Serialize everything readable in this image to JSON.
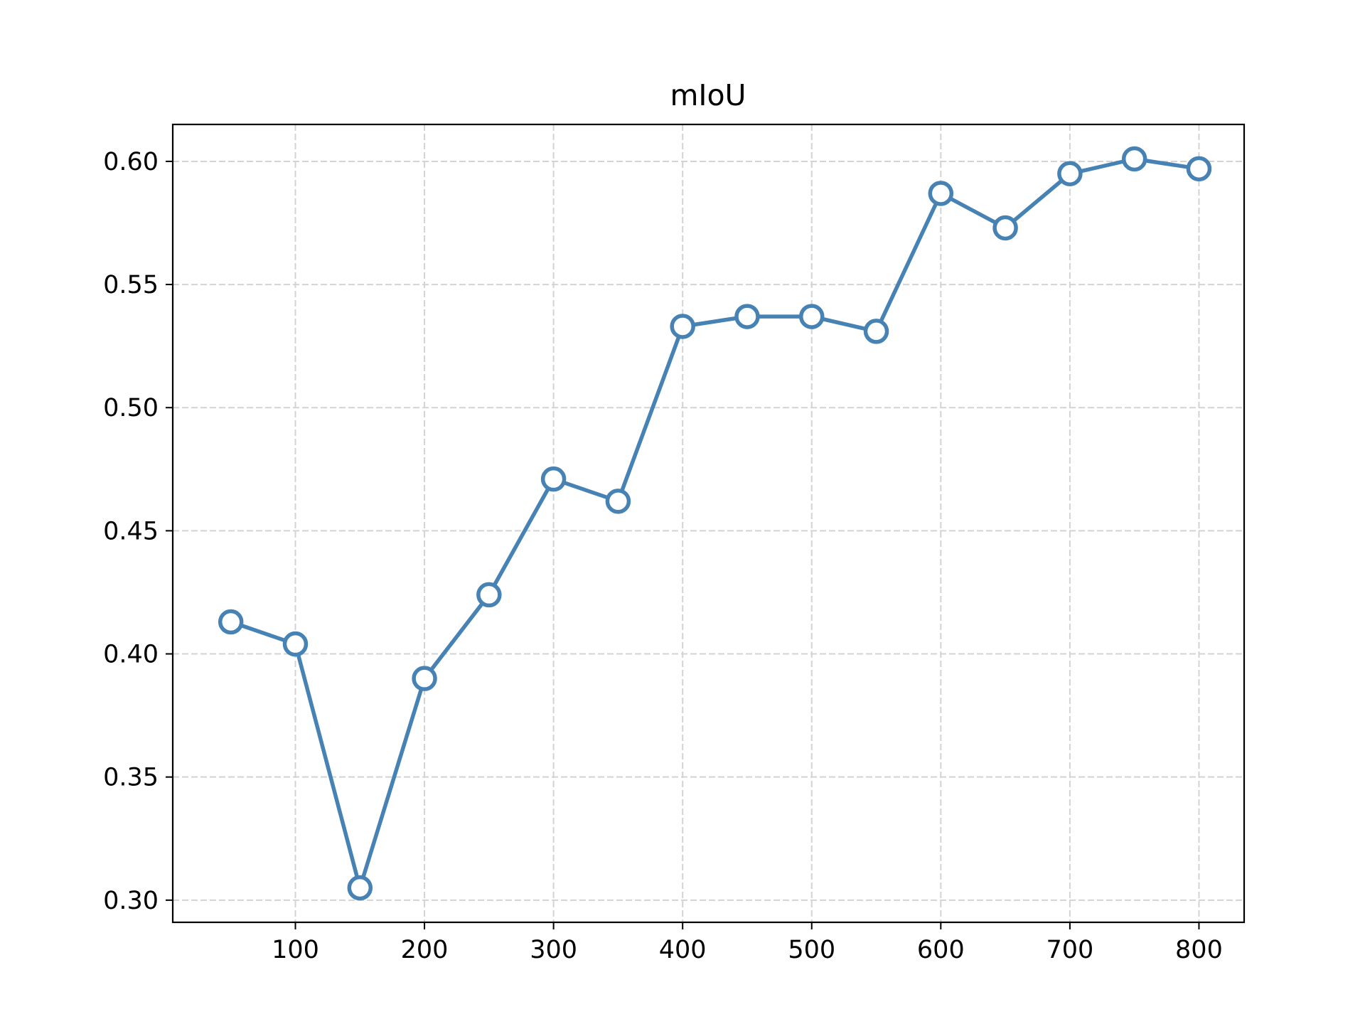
{
  "chart_data": {
    "type": "line",
    "title": "mIoU",
    "xlabel": "",
    "ylabel": "",
    "x": [
      50,
      100,
      150,
      200,
      250,
      300,
      350,
      400,
      450,
      500,
      550,
      600,
      650,
      700,
      750,
      800
    ],
    "series": [
      {
        "values": [
          0.413,
          0.404,
          0.305,
          0.39,
          0.424,
          0.471,
          0.462,
          0.533,
          0.537,
          0.537,
          0.531,
          0.587,
          0.573,
          0.595,
          0.601,
          0.597
        ]
      }
    ],
    "xlim": [
      5,
      835
    ],
    "ylim": [
      0.291,
      0.615
    ],
    "xticks": [
      100,
      200,
      300,
      400,
      500,
      600,
      700,
      800
    ],
    "xtick_labels": [
      "100",
      "200",
      "300",
      "400",
      "500",
      "600",
      "700",
      "800"
    ],
    "yticks": [
      0.3,
      0.35,
      0.4,
      0.45,
      0.5,
      0.55,
      0.6
    ],
    "ytick_labels": [
      "0.30",
      "0.35",
      "0.40",
      "0.45",
      "0.50",
      "0.55",
      "0.60"
    ],
    "grid": true,
    "legend": "none",
    "colors": {
      "line": "#4682b4",
      "marker_face": "#ffffff",
      "grid": "#d3d3d3",
      "axes": "#000000"
    },
    "marker": "open-circle"
  }
}
